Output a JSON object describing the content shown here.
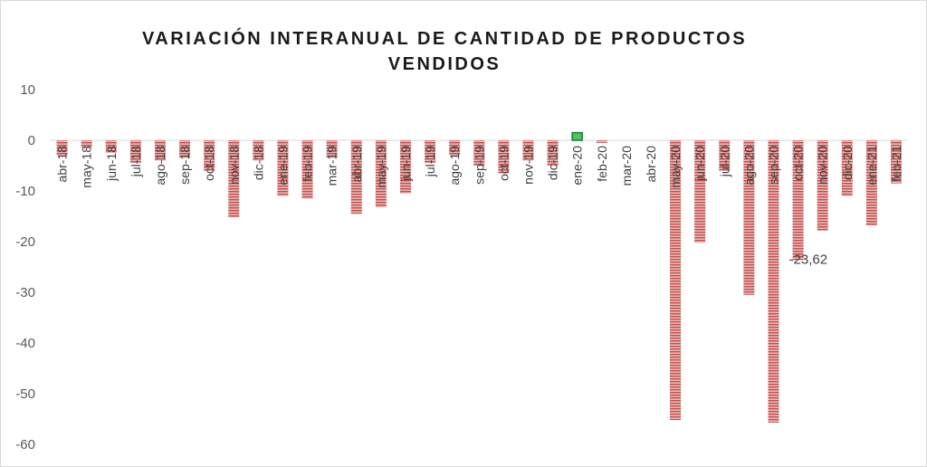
{
  "chart_data": {
    "type": "bar",
    "title": "VARIACIÓN INTERANUAL DE CANTIDAD DE PRODUCTOS VENDIDOS",
    "xlabel": "",
    "ylabel": "",
    "ylim": [
      -60,
      10
    ],
    "yticks": [
      10,
      0,
      -10,
      -20,
      -30,
      -40,
      -50,
      -60
    ],
    "grid": false,
    "legend": "none",
    "categories": [
      "abr-18",
      "may-18",
      "jun-18",
      "jul-18",
      "ago-18",
      "sep-18",
      "oct-18",
      "nov-18",
      "dic-18",
      "ene-19",
      "feb-19",
      "mar-19",
      "abr-19",
      "may-19",
      "jun-19",
      "jul-19",
      "ago-19",
      "sep-19",
      "oct-19",
      "nov-19",
      "dic-19",
      "ene-20",
      "feb-20",
      "mar-20",
      "abr-20",
      "may-20",
      "jun-20",
      "jul-20",
      "ago-20",
      "sep-20",
      "oct-20",
      "nov-20",
      "dic-20",
      "ene-21",
      "feb-21"
    ],
    "values": [
      -3.0,
      -1.5,
      -2.5,
      -4.5,
      -4.0,
      -3.5,
      -6.0,
      -15.2,
      -4.0,
      -11.0,
      -11.5,
      -3.5,
      -14.5,
      -13.2,
      -10.5,
      -4.5,
      -3.0,
      -5.0,
      -6.5,
      -4.0,
      -5.0,
      1.5,
      -0.5,
      null,
      null,
      -55.2,
      -20.2,
      -6.0,
      -30.5,
      -55.7,
      -23.62,
      -17.8,
      -11.0,
      -16.8,
      -8.5
    ],
    "data_labels": [
      {
        "category": "oct-20",
        "text": "-23,62"
      }
    ],
    "colors": {
      "negative_fill": "#e6a5a5",
      "negative_stripe": "#c0504d",
      "positive_fill": "#5cbf5c",
      "positive_border": "#00843d"
    }
  }
}
